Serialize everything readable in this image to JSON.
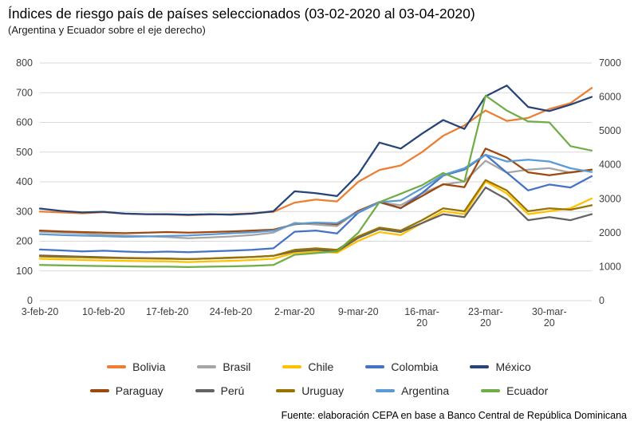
{
  "header": {
    "title": "Índices de riesgo país de países seleccionados (03-02-2020 al 03-04-2020)",
    "subtitle": "(Argentina y Ecuador sobre el eje derecho)"
  },
  "footer": {
    "source": "Fuente: elaboración CEPA en base a Banco Central de República Dominicana"
  },
  "chart_data": {
    "type": "line",
    "title": "Índices de riesgo país de países seleccionados (03-02-2020 al 03-04-2020)",
    "subtitle": "(Argentina y Ecuador sobre el eje derecho)",
    "grid": true,
    "legend_position": "bottom",
    "left_axis": {
      "min": 0,
      "max": 800,
      "step": 100
    },
    "right_axis": {
      "min": 0,
      "max": 7000,
      "step": 1000
    },
    "right_axis_series": [
      "Argentina",
      "Ecuador"
    ],
    "categories": [
      "3-feb-20",
      "5-feb-20",
      "7-feb-20",
      "10-feb-20",
      "12-feb-20",
      "14-feb-20",
      "17-feb-20",
      "19-feb-20",
      "21-feb-20",
      "24-feb-20",
      "26-feb-20",
      "28-feb-20",
      "2-mar-20",
      "4-mar-20",
      "6-mar-20",
      "9-mar-20",
      "11-mar-20",
      "13-mar-20",
      "16-mar-20",
      "18-mar-20",
      "20-mar-20",
      "23-mar-20",
      "25-mar-20",
      "27-mar-20",
      "30-mar-20",
      "1-abr-20",
      "3-abr-20"
    ],
    "x_ticks": [
      {
        "index": 0,
        "label": "3-feb-20"
      },
      {
        "index": 3,
        "label": "10-feb-20"
      },
      {
        "index": 6,
        "label": "17-feb-20"
      },
      {
        "index": 9,
        "label": "24-feb-20"
      },
      {
        "index": 12,
        "label": "2-mar-20"
      },
      {
        "index": 15,
        "label": "9-mar-20"
      },
      {
        "index": 18,
        "label": "16-mar-\n20"
      },
      {
        "index": 21,
        "label": "23-mar-\n20"
      },
      {
        "index": 24,
        "label": "30-mar-\n20"
      }
    ],
    "series": [
      {
        "name": "Bolivia",
        "axis": "left",
        "color": "#ED7D31",
        "values": [
          300,
          297,
          294,
          298,
          293,
          291,
          290,
          288,
          290,
          291,
          294,
          299,
          330,
          340,
          334,
          400,
          440,
          455,
          500,
          555,
          590,
          640,
          605,
          615,
          645,
          665,
          716
        ]
      },
      {
        "name": "Brasil",
        "axis": "left",
        "color": "#A5A5A5",
        "values": [
          232,
          229,
          226,
          222,
          219,
          217,
          214,
          210,
          213,
          216,
          221,
          229,
          262,
          256,
          251,
          302,
          331,
          321,
          361,
          391,
          401,
          471,
          431,
          441,
          446,
          431,
          441
        ]
      },
      {
        "name": "Chile",
        "axis": "left",
        "color": "#FFC000",
        "values": [
          141,
          139,
          137,
          135,
          134,
          133,
          132,
          130,
          132,
          134,
          137,
          141,
          161,
          166,
          161,
          201,
          231,
          221,
          261,
          301,
          291,
          401,
          361,
          291,
          301,
          311,
          344
        ]
      },
      {
        "name": "Colombia",
        "axis": "left",
        "color": "#4472C4",
        "values": [
          172,
          169,
          166,
          168,
          165,
          163,
          165,
          163,
          166,
          168,
          171,
          176,
          232,
          236,
          226,
          296,
          331,
          311,
          362,
          421,
          441,
          491,
          431,
          371,
          391,
          381,
          419
        ]
      },
      {
        "name": "México",
        "axis": "left",
        "color": "#264478",
        "values": [
          310,
          302,
          297,
          299,
          293,
          291,
          291,
          289,
          291,
          289,
          293,
          301,
          368,
          362,
          352,
          425,
          532,
          512,
          562,
          608,
          578,
          688,
          724,
          652,
          638,
          660,
          686
        ]
      },
      {
        "name": "Paraguay",
        "axis": "left",
        "color": "#9E480E",
        "values": [
          236,
          233,
          231,
          229,
          227,
          229,
          231,
          229,
          231,
          233,
          236,
          239,
          257,
          262,
          257,
          302,
          332,
          312,
          352,
          392,
          382,
          512,
          482,
          432,
          422,
          432,
          441
        ]
      },
      {
        "name": "Perú",
        "axis": "left",
        "color": "#636363",
        "values": [
          152,
          150,
          148,
          146,
          144,
          143,
          142,
          140,
          142,
          144,
          147,
          151,
          166,
          171,
          166,
          211,
          241,
          231,
          261,
          291,
          281,
          381,
          341,
          271,
          281,
          271,
          291
        ]
      },
      {
        "name": "Uruguay",
        "axis": "left",
        "color": "#997300",
        "values": [
          149,
          147,
          146,
          144,
          143,
          142,
          141,
          140,
          142,
          145,
          147,
          151,
          171,
          176,
          171,
          216,
          246,
          236,
          271,
          311,
          301,
          406,
          371,
          301,
          311,
          306,
          321
        ]
      },
      {
        "name": "Argentina",
        "axis": "right",
        "color": "#5B9BD5",
        "values": [
          1960,
          1930,
          1915,
          1900,
          1880,
          1890,
          1905,
          1920,
          1950,
          1985,
          2010,
          2060,
          2260,
          2300,
          2280,
          2610,
          2900,
          2950,
          3310,
          3700,
          3900,
          4300,
          4100,
          4150,
          4100,
          3900,
          3790
        ]
      },
      {
        "name": "Ecuador",
        "axis": "right",
        "color": "#70AD47",
        "values": [
          1050,
          1040,
          1030,
          1020,
          1010,
          1000,
          1000,
          990,
          1000,
          1010,
          1025,
          1050,
          1350,
          1400,
          1450,
          2000,
          2900,
          3150,
          3400,
          3760,
          3500,
          6040,
          5600,
          5280,
          5250,
          4550,
          4420
        ]
      }
    ],
    "legend_rows": [
      [
        "Bolivia",
        "Brasil",
        "Chile",
        "Colombia",
        "México"
      ],
      [
        "Paraguay",
        "Perú",
        "Uruguay",
        "Argentina",
        "Ecuador"
      ]
    ]
  }
}
